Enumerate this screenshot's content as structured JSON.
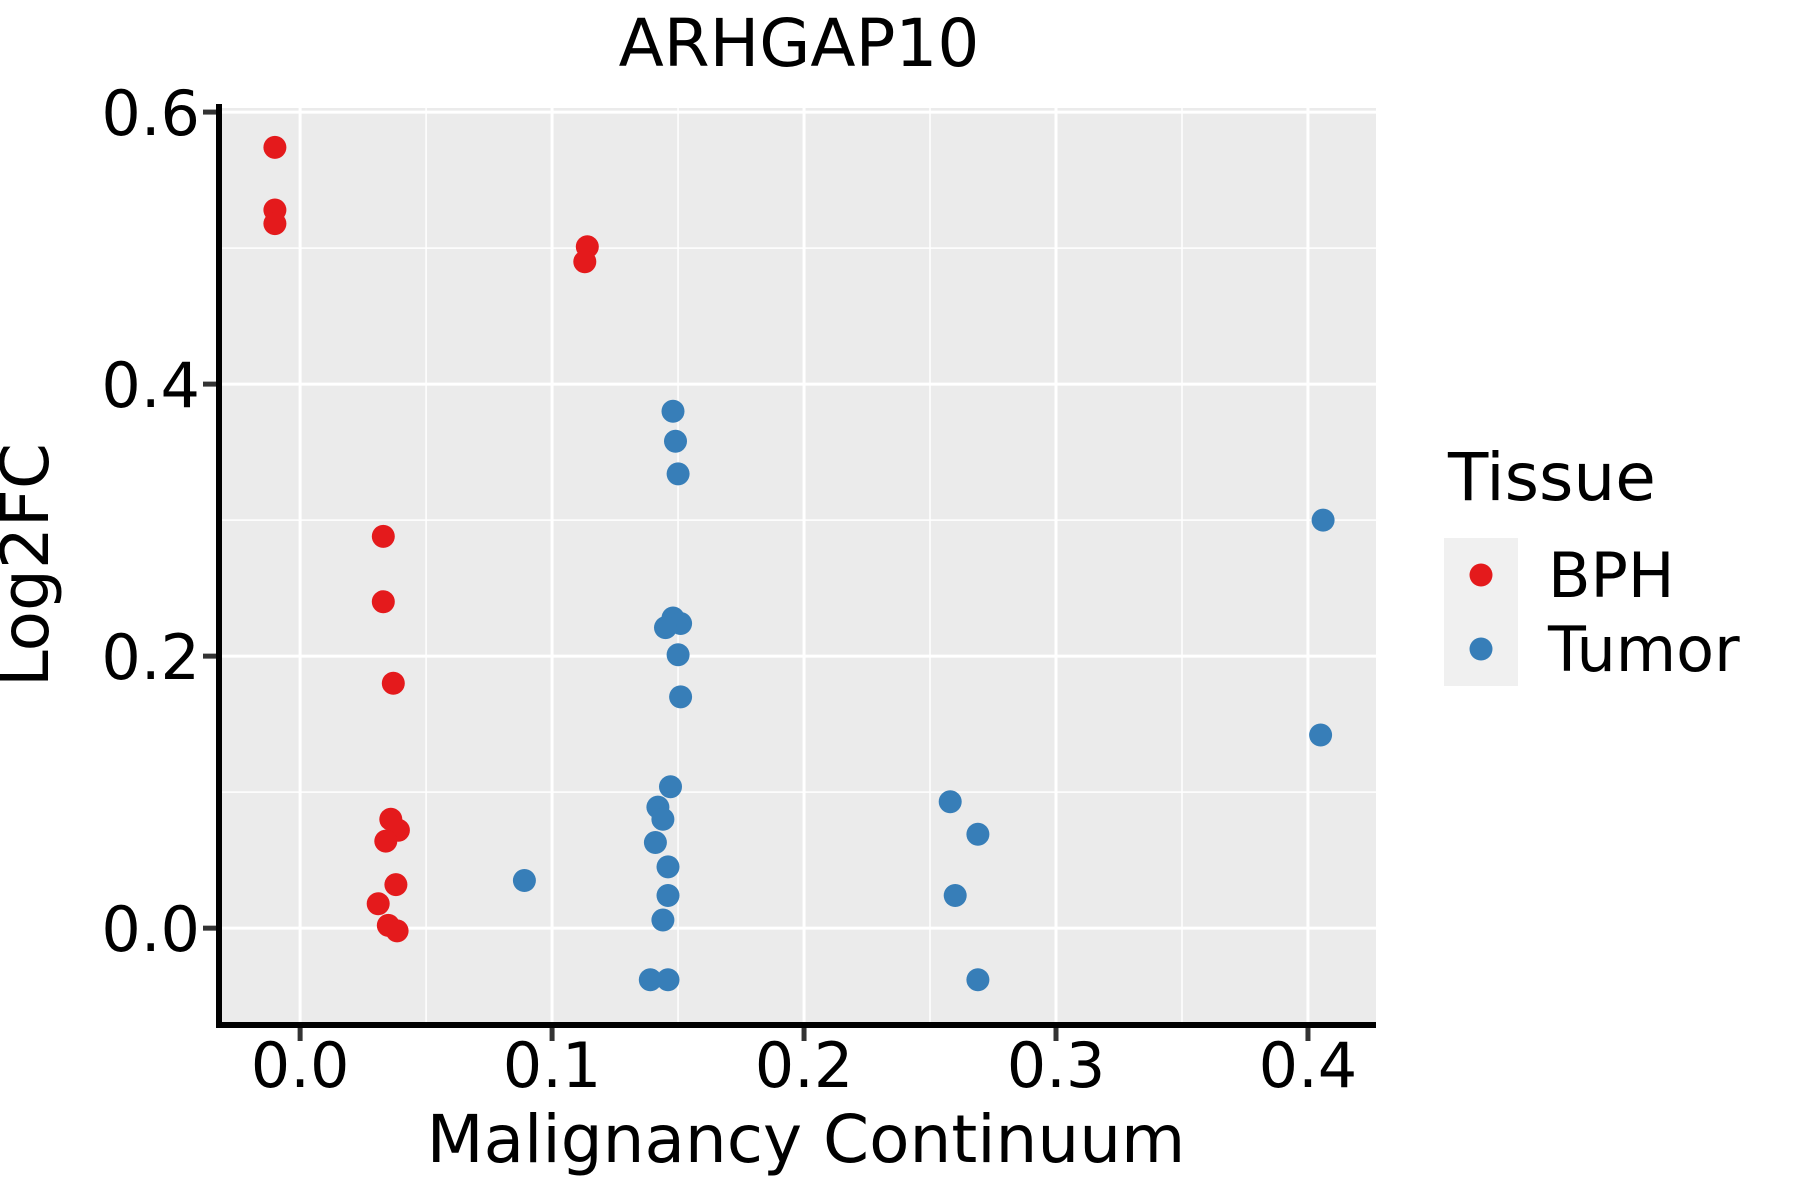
{
  "figure": {
    "title": "ARHGAP10"
  },
  "legend": {
    "title": "Tissue",
    "entries": [
      {
        "label": "BPH",
        "color": "#E41A1C"
      },
      {
        "label": "Tumor",
        "color": "#377EB8"
      }
    ]
  },
  "colors": {
    "panel_bg": "#EBEBEB",
    "grid": "#FFFFFF",
    "axis_line": "#000000",
    "tick_mark": "#333333",
    "legend_key_bg": "#F0F0F0",
    "bph": "#E41A1C",
    "tumor": "#377EB8"
  },
  "chart_data": {
    "type": "scatter",
    "title": "ARHGAP10",
    "xlabel": "Malignancy Continuum",
    "ylabel": "Log2FC",
    "xlim": [
      -0.031,
      0.427
    ],
    "ylim": [
      -0.069,
      0.603
    ],
    "grid": true,
    "legend_position": "right",
    "x_ticks": {
      "values": [
        0.0,
        0.1,
        0.2,
        0.3,
        0.4
      ],
      "labels": [
        "0.0",
        "0.1",
        "0.2",
        "0.3",
        "0.4"
      ]
    },
    "y_ticks": {
      "values": [
        0.0,
        0.2,
        0.4,
        0.6
      ],
      "labels": [
        "0.0",
        "0.2",
        "0.4",
        "0.6"
      ]
    },
    "x_minor": [
      0.05,
      0.15,
      0.25,
      0.35
    ],
    "y_minor": [
      0.1,
      0.3,
      0.5
    ],
    "point_radius_px": 11.5,
    "series": [
      {
        "name": "BPH",
        "color": "#E41A1C",
        "points": [
          [
            -0.01,
            0.574
          ],
          [
            -0.01,
            0.528
          ],
          [
            -0.01,
            0.518
          ],
          [
            0.114,
            0.501
          ],
          [
            0.113,
            0.49
          ],
          [
            0.033,
            0.288
          ],
          [
            0.033,
            0.24
          ],
          [
            0.037,
            0.18
          ],
          [
            0.036,
            0.08
          ],
          [
            0.039,
            0.072
          ],
          [
            0.034,
            0.064
          ],
          [
            0.038,
            0.032
          ],
          [
            0.031,
            0.018
          ],
          [
            0.035,
            0.002
          ],
          [
            0.0385,
            -0.002
          ]
        ]
      },
      {
        "name": "Tumor",
        "color": "#377EB8",
        "points": [
          [
            0.089,
            0.035
          ],
          [
            0.148,
            0.38
          ],
          [
            0.149,
            0.358
          ],
          [
            0.15,
            0.334
          ],
          [
            0.148,
            0.228
          ],
          [
            0.151,
            0.224
          ],
          [
            0.145,
            0.221
          ],
          [
            0.15,
            0.201
          ],
          [
            0.151,
            0.17
          ],
          [
            0.147,
            0.104
          ],
          [
            0.142,
            0.089
          ],
          [
            0.144,
            0.08
          ],
          [
            0.141,
            0.063
          ],
          [
            0.146,
            0.045
          ],
          [
            0.146,
            0.024
          ],
          [
            0.144,
            0.006
          ],
          [
            0.139,
            -0.038
          ],
          [
            0.146,
            -0.038
          ],
          [
            0.258,
            0.093
          ],
          [
            0.269,
            0.069
          ],
          [
            0.26,
            0.024
          ],
          [
            0.269,
            -0.038
          ],
          [
            0.406,
            0.3
          ],
          [
            0.405,
            0.142
          ]
        ]
      }
    ]
  }
}
